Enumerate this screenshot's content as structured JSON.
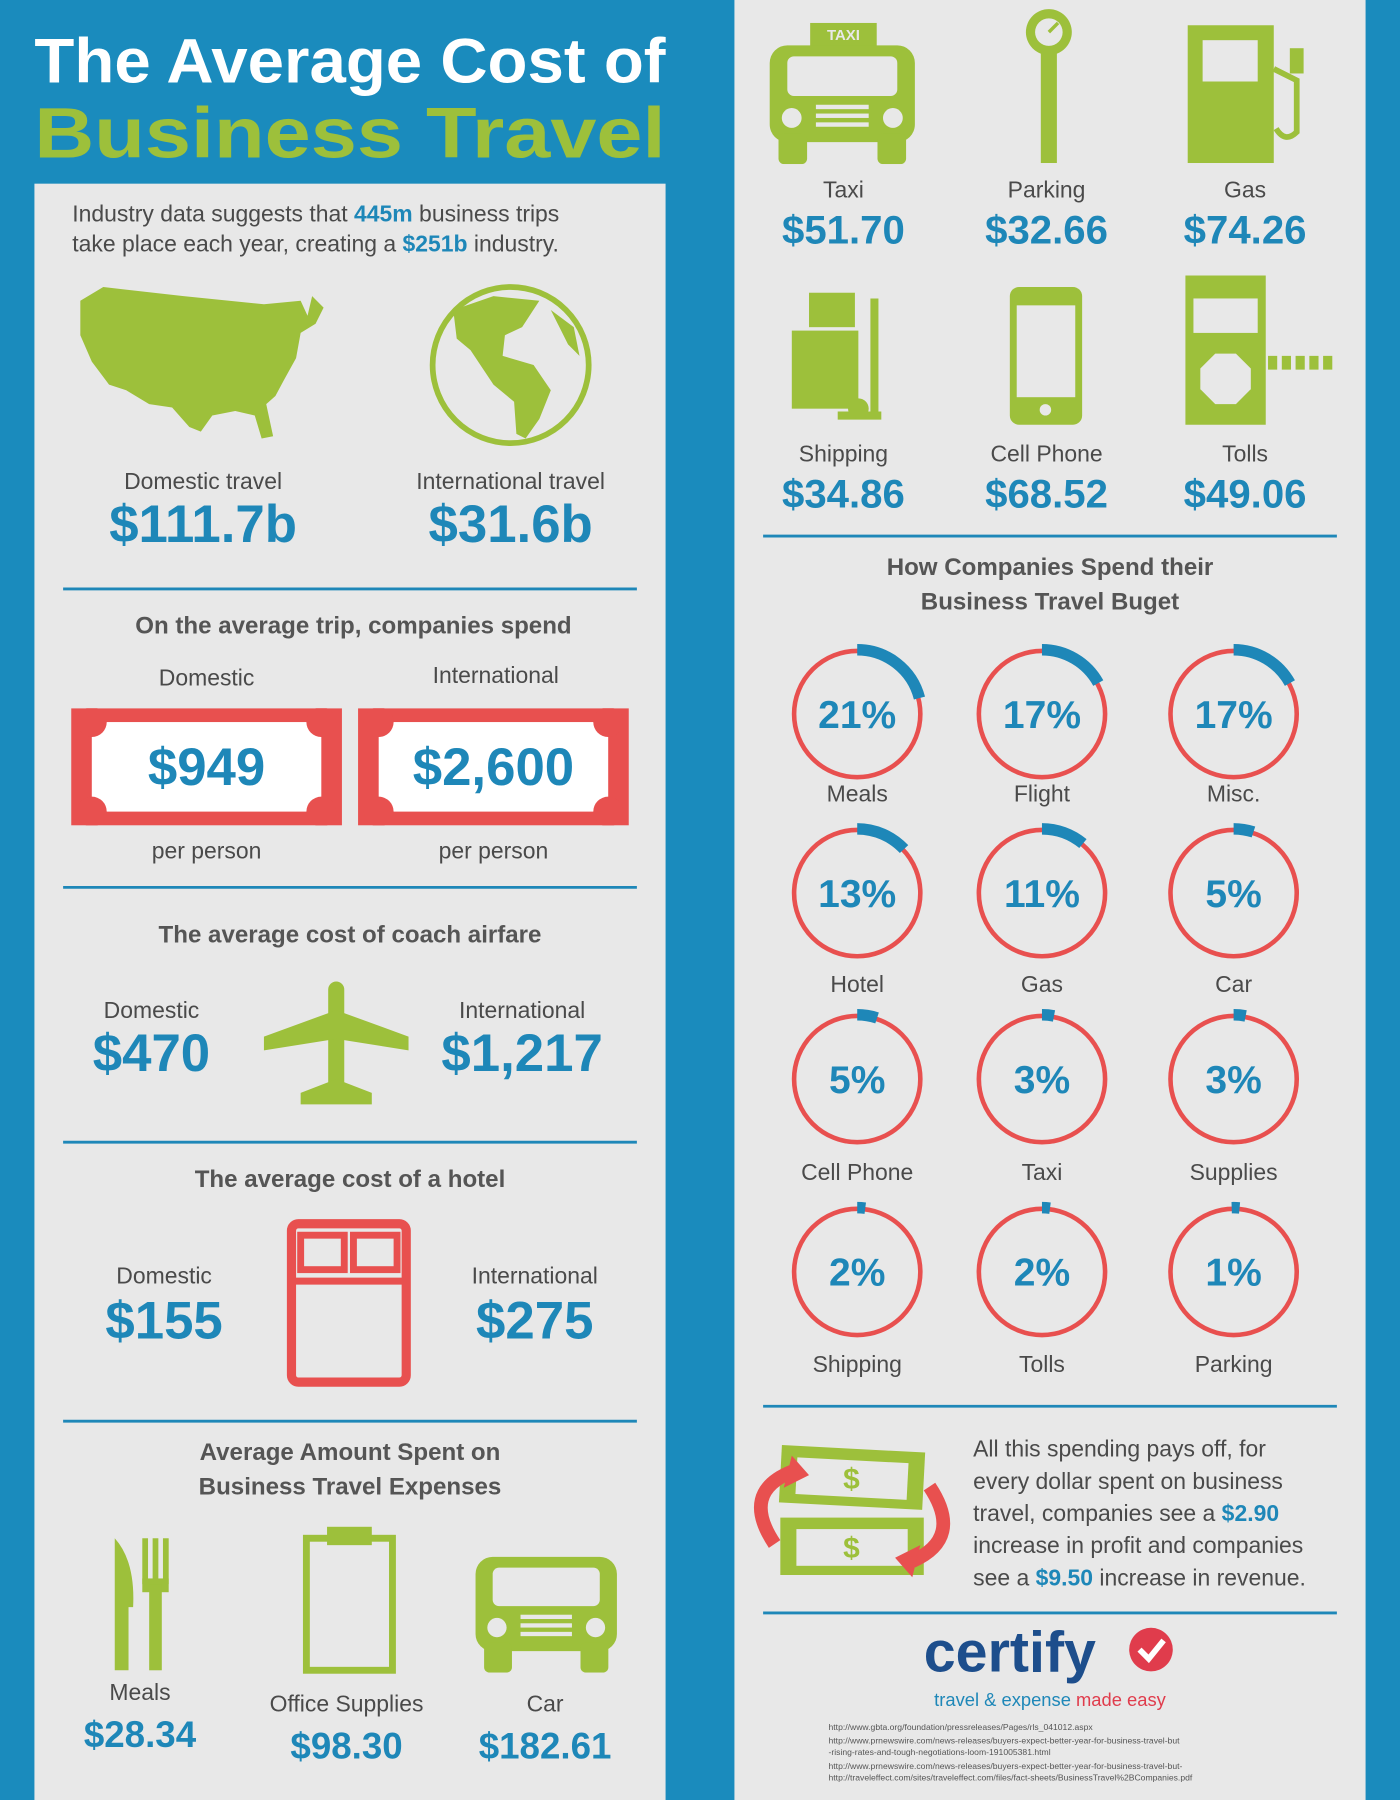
{
  "header": {
    "title_line1": "The Average Cost of",
    "title_line2": "Business Travel"
  },
  "intro": {
    "lines": [
      [
        {
          "text": "Industry data suggests that "
        },
        {
          "text": "445m",
          "highlight": true
        },
        {
          "text": " business trips"
        }
      ],
      [
        {
          "text": "take place each year, creating a "
        },
        {
          "text": "$251b",
          "highlight": true
        },
        {
          "text": " industry."
        }
      ]
    ]
  },
  "travel_totals": [
    {
      "label": "Domestic travel",
      "value": "$111.7b"
    },
    {
      "label": "International travel",
      "value": "$31.6b"
    }
  ],
  "per_trip": {
    "title": "On the average trip, companies spend",
    "items": [
      {
        "label": "Domestic",
        "value": "$949",
        "unit": "per person"
      },
      {
        "label": "International",
        "value": "$2,600",
        "unit": "per person"
      }
    ]
  },
  "airfare": {
    "title": "The average cost of coach airfare",
    "items": [
      {
        "label": "Domestic",
        "value": "$470"
      },
      {
        "label": "International",
        "value": "$1,217"
      }
    ]
  },
  "hotel": {
    "title": "The average cost of a hotel",
    "items": [
      {
        "label": "Domestic",
        "value": "$155"
      },
      {
        "label": "International",
        "value": "$275"
      }
    ]
  },
  "expenses": {
    "title_lines": [
      "Average Amount Spent on",
      "Business Travel Expenses"
    ],
    "items": [
      {
        "label": "Meals",
        "value": "$28.34"
      },
      {
        "label": "Office Supplies",
        "value": "$98.30"
      },
      {
        "label": "Car",
        "value": "$182.61"
      },
      {
        "label": "Taxi",
        "value": "$51.70"
      },
      {
        "label": "Parking",
        "value": "$32.66"
      },
      {
        "label": "Gas",
        "value": "$74.26"
      },
      {
        "label": "Shipping",
        "value": "$34.86"
      },
      {
        "label": "Cell Phone",
        "value": "$68.52"
      },
      {
        "label": "Tolls",
        "value": "$49.06"
      }
    ]
  },
  "icons": {
    "taxi_sign": "TAXI"
  },
  "budget": {
    "title_lines": [
      "How Companies Spend their",
      "Business Travel Buget"
    ],
    "items": [
      {
        "name": "Meals",
        "value": 21,
        "value_label": "21%"
      },
      {
        "name": "Flight",
        "value": 17,
        "value_label": "17%"
      },
      {
        "name": "Misc.",
        "value": 17,
        "value_label": "17%"
      },
      {
        "name": "Hotel",
        "value": 13,
        "value_label": "13%"
      },
      {
        "name": "Gas",
        "value": 11,
        "value_label": "11%"
      },
      {
        "name": "Car",
        "value": 5,
        "value_label": "5%"
      },
      {
        "name": "Cell Phone",
        "value": 5,
        "value_label": "5%"
      },
      {
        "name": "Taxi",
        "value": 3,
        "value_label": "3%"
      },
      {
        "name": "Supplies",
        "value": 3,
        "value_label": "3%"
      },
      {
        "name": "Shipping",
        "value": 2,
        "value_label": "2%"
      },
      {
        "name": "Tolls",
        "value": 2,
        "value_label": "2%"
      },
      {
        "name": "Parking",
        "value": 1,
        "value_label": "1%"
      }
    ]
  },
  "roi": {
    "lines": [
      [
        {
          "text": "All this spending pays off, for"
        }
      ],
      [
        {
          "text": "every dollar spent on business"
        }
      ],
      [
        {
          "text": "travel, companies see a "
        },
        {
          "text": "$2.90",
          "highlight": true
        }
      ],
      [
        {
          "text": "increase in profit and companies"
        }
      ],
      [
        {
          "text": "see a "
        },
        {
          "text": "$9.50",
          "highlight": true
        },
        {
          "text": " increase in revenue."
        }
      ]
    ]
  },
  "brand": {
    "name": "certify",
    "tagline": [
      {
        "text": "travel & expense "
      },
      {
        "text": "made easy",
        "highlight": true
      }
    ]
  },
  "sources": [
    "http://www.gbta.org/foundation/pressreleases/Pages/rls_041012.aspx",
    "http://www.prnewswire.com/news-releases/buyers-expect-better-year-for-business-travel-but",
    "-rising-rates-and-tough-negotiations-loom-191005381.html",
    "http://www.prnewswire.com/news-releases/buyers-expect-better-year-for-business-travel-but-",
    "http://traveleffect.com/sites/traveleffect.com/files/fact-sheets/BusinessTravel%2BCompanies.pdf"
  ]
}
